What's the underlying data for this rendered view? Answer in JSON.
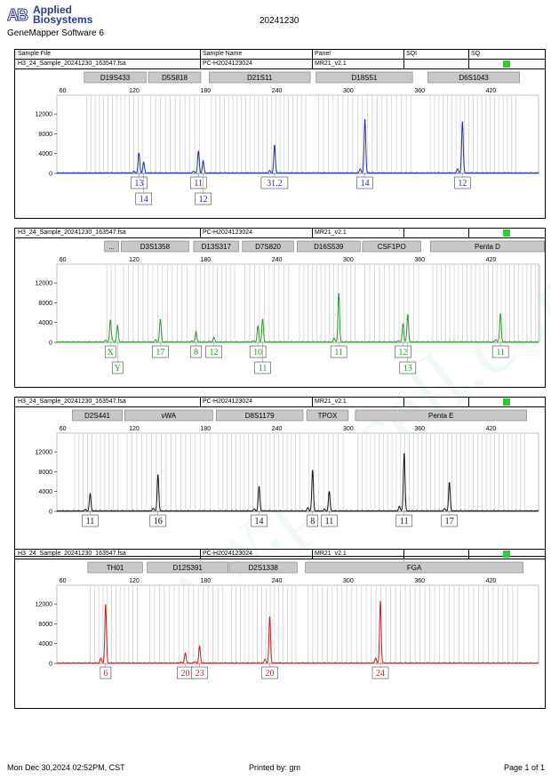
{
  "brand": {
    "mark": "AB",
    "line1": "Applied",
    "line2": "Biosystems"
  },
  "software": "GeneMapper Software 6",
  "run_id": "20241230",
  "header": {
    "sample_file": "Sample File",
    "sample_name": "Sample Name",
    "panel": "Panel",
    "sqi": "SQI",
    "sq": "SQ"
  },
  "watermark": "www.procell.com.cn",
  "footer": {
    "datetime": "Mon Dec 30,2024 02:52PM, CST",
    "printed_by": "Printed by: gm",
    "page": "Page 1 of 1"
  },
  "colors": {
    "blue": "#1e2fa8",
    "green": "#2a9b2a",
    "black": "#111111",
    "red": "#c81e1e",
    "label_box_border": "#444444",
    "sq_ok": "#2ecc2e"
  },
  "chart_data": [
    {
      "type": "line",
      "dye": "blue",
      "sample_file": "H3_24_Sample_20241230_163547.fsa",
      "sample_name": "PC-H2024123024",
      "panel": "MR21_v2.1",
      "xticks": [
        60,
        120,
        180,
        240,
        300,
        360,
        420
      ],
      "yticks": [
        0,
        4000,
        8000,
        12000
      ],
      "xlim": [
        55,
        460
      ],
      "ylim": [
        0,
        14000
      ],
      "markers": [
        {
          "name": "D19S433",
          "range": [
            78,
            130
          ]
        },
        {
          "name": "D5S818",
          "range": [
            132,
            176
          ]
        },
        {
          "name": "D21S11",
          "range": [
            183,
            268
          ]
        },
        {
          "name": "D18S51",
          "range": [
            273,
            354
          ]
        },
        {
          "name": "D6S1043",
          "range": [
            367,
            444
          ]
        }
      ],
      "peaks": [
        {
          "x": 124,
          "y": 3900,
          "allele": "13",
          "row": 1
        },
        {
          "x": 128,
          "y": 2100,
          "allele": "14",
          "row": 2
        },
        {
          "x": 174,
          "y": 4200,
          "allele": "11",
          "row": 1
        },
        {
          "x": 178,
          "y": 2400,
          "allele": "12",
          "row": 2
        },
        {
          "x": 238,
          "y": 5600,
          "allele": "31.2",
          "row": 1
        },
        {
          "x": 314,
          "y": 10800,
          "allele": "14",
          "row": 1
        },
        {
          "x": 396,
          "y": 10300,
          "allele": "12",
          "row": 1
        }
      ]
    },
    {
      "type": "line",
      "dye": "green",
      "sample_file": "H3_24_Sample_20241230_163547.fsa",
      "sample_name": "PC-H2024123024",
      "panel": "MR21_v2.1",
      "xticks": [
        60,
        120,
        180,
        240,
        300,
        360,
        420
      ],
      "yticks": [
        0,
        4000,
        8000,
        12000
      ],
      "xlim": [
        55,
        460
      ],
      "ylim": [
        0,
        14000
      ],
      "markers": [
        {
          "name": "...",
          "range": [
            95,
            107
          ]
        },
        {
          "name": "D3S1358",
          "range": [
            109,
            166
          ]
        },
        {
          "name": "D13S317",
          "range": [
            170,
            208
          ]
        },
        {
          "name": "D7S820",
          "range": [
            211,
            254
          ]
        },
        {
          "name": "D16S539",
          "range": [
            257,
            310
          ]
        },
        {
          "name": "CSF1PO",
          "range": [
            312,
            361
          ]
        },
        {
          "name": "Penta D",
          "range": [
            369,
            465
          ]
        }
      ],
      "peaks": [
        {
          "x": 100,
          "y": 4400,
          "allele": "X",
          "row": 1
        },
        {
          "x": 106,
          "y": 3300,
          "allele": "Y",
          "row": 2
        },
        {
          "x": 142,
          "y": 4600,
          "allele": "17",
          "row": 1
        },
        {
          "x": 172,
          "y": 2100,
          "allele": "8",
          "row": 1
        },
        {
          "x": 187,
          "y": 900,
          "allele": "12",
          "row": 1
        },
        {
          "x": 224,
          "y": 2800,
          "allele": "10",
          "row": 1
        },
        {
          "x": 228,
          "y": 4600,
          "allele": "11",
          "row": 2
        },
        {
          "x": 292,
          "y": 9800,
          "allele": "11",
          "row": 1
        },
        {
          "x": 346,
          "y": 3300,
          "allele": "12",
          "row": 1
        },
        {
          "x": 350,
          "y": 5500,
          "allele": "13",
          "row": 2
        },
        {
          "x": 428,
          "y": 5700,
          "allele": "11",
          "row": 1
        }
      ]
    },
    {
      "type": "line",
      "dye": "black",
      "sample_file": "H3_24_Sample_20241230_163547.fsa",
      "sample_name": "PC-H2024123024",
      "panel": "MR21_v2.1",
      "xticks": [
        60,
        120,
        180,
        240,
        300,
        360,
        420
      ],
      "yticks": [
        0,
        4000,
        8000,
        12000
      ],
      "xlim": [
        55,
        460
      ],
      "ylim": [
        0,
        14000
      ],
      "markers": [
        {
          "name": "D2S441",
          "range": [
            68,
            110
          ]
        },
        {
          "name": "vWA",
          "range": [
            112,
            186
          ]
        },
        {
          "name": "D8S1179",
          "range": [
            189,
            262
          ]
        },
        {
          "name": "TPOX",
          "range": [
            265,
            300
          ]
        },
        {
          "name": "Penta E",
          "range": [
            306,
            450
          ]
        }
      ],
      "peaks": [
        {
          "x": 83,
          "y": 3400,
          "allele": "11",
          "row": 1
        },
        {
          "x": 140,
          "y": 7300,
          "allele": "16",
          "row": 1
        },
        {
          "x": 225,
          "y": 4900,
          "allele": "14",
          "row": 1
        },
        {
          "x": 270,
          "y": 8200,
          "allele": "8",
          "row": 1
        },
        {
          "x": 284,
          "y": 3900,
          "allele": "11",
          "row": 1
        },
        {
          "x": 347,
          "y": 11600,
          "allele": "11",
          "row": 1
        },
        {
          "x": 385,
          "y": 5700,
          "allele": "17",
          "row": 1
        }
      ]
    },
    {
      "type": "line",
      "dye": "red",
      "sample_file": "H3_24_Sample_20241230_163547.fsa",
      "sample_name": "PC-H2024123024",
      "panel": "MR21_v2.1",
      "xticks": [
        60,
        120,
        180,
        240,
        300,
        360,
        420
      ],
      "yticks": [
        0,
        4000,
        8000,
        12000
      ],
      "xlim": [
        55,
        460
      ],
      "ylim": [
        0,
        14000
      ],
      "markers": [
        {
          "name": "TH01",
          "range": [
            81,
            127
          ]
        },
        {
          "name": "D12S391",
          "range": [
            131,
            199
          ]
        },
        {
          "name": "D2S1338",
          "range": [
            200,
            257
          ]
        },
        {
          "name": "FGA",
          "range": [
            264,
            447
          ]
        }
      ],
      "peaks": [
        {
          "x": 96,
          "y": 11800,
          "allele": "6",
          "row": 1
        },
        {
          "x": 163,
          "y": 2000,
          "allele": "20",
          "row": 1
        },
        {
          "x": 175,
          "y": 3300,
          "allele": "23",
          "row": 1
        },
        {
          "x": 234,
          "y": 9300,
          "allele": "20",
          "row": 1
        },
        {
          "x": 327,
          "y": 12400,
          "allele": "24",
          "row": 1
        }
      ]
    }
  ]
}
